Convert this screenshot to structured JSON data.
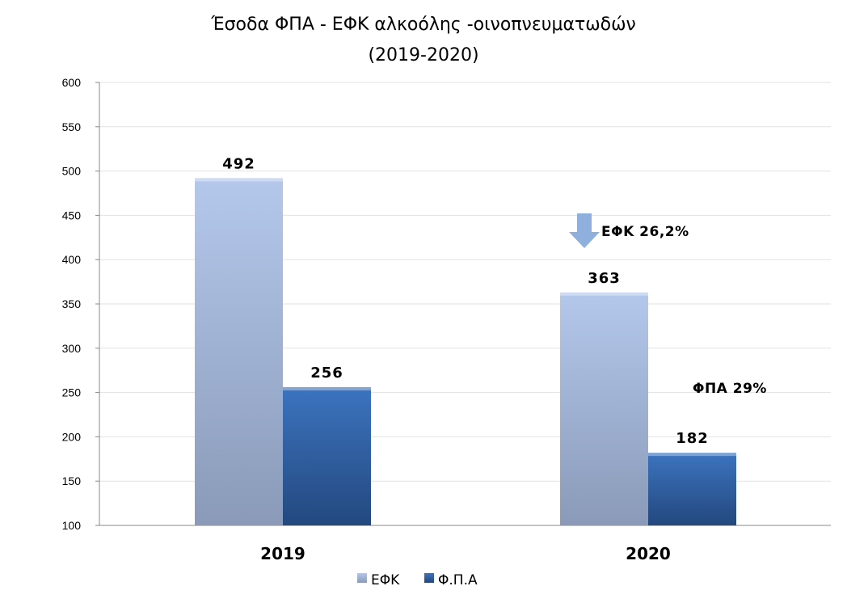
{
  "chart_data": {
    "type": "bar",
    "title_line1": "Έσοδα ΦΠΑ - ΕΦΚ αλκοόλης -οινοπνευματωδών",
    "title_line2": "(2019-2020)",
    "categories": [
      "2019",
      "2020"
    ],
    "series": [
      {
        "name": "ΕΦΚ",
        "values": [
          492,
          363
        ],
        "labels": [
          "492",
          "363"
        ],
        "color_top": "#b4c8ec",
        "color_bottom": "#8a9ab8"
      },
      {
        "name": "Φ.Π.Α",
        "values": [
          256,
          182
        ],
        "labels": [
          "256",
          "182"
        ],
        "color_top": "#3c74bf",
        "color_bottom": "#23487e"
      }
    ],
    "yticks": [
      "100",
      "150",
      "200",
      "250",
      "300",
      "350",
      "400",
      "450",
      "500",
      "550",
      "600"
    ],
    "ylim": [
      100,
      600
    ],
    "grid": true,
    "legend_position": "bottom",
    "annotations": {
      "efk_change": "ΕΦΚ 26,2%",
      "fpa_change": "ΦΠΑ 29%"
    },
    "arrow_color": "#8fb0dc"
  }
}
